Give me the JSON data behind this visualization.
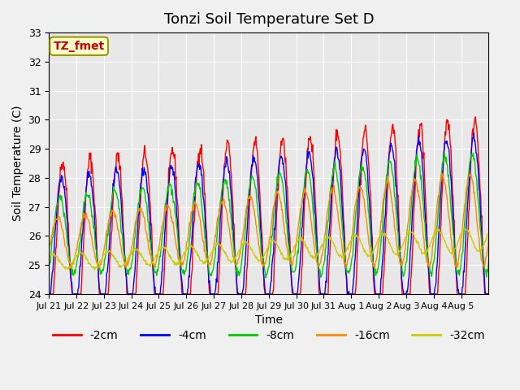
{
  "title": "Tonzi Soil Temperature Set D",
  "xlabel": "Time",
  "ylabel": "Soil Temperature (C)",
  "ylim": [
    24.0,
    33.0
  ],
  "yticks": [
    24.0,
    25.0,
    26.0,
    27.0,
    28.0,
    29.0,
    30.0,
    31.0,
    32.0,
    33.0
  ],
  "xtick_labels": [
    "Jul 21",
    "Jul 22",
    "Jul 23",
    "Jul 24",
    "Jul 25",
    "Jul 26",
    "Jul 27",
    "Jul 28",
    "Jul 29",
    "Jul 30",
    "Jul 31",
    "Aug 1",
    "Aug 2",
    "Aug 3",
    "Aug 4",
    "Aug 5"
  ],
  "annotation_text": "TZ_fmet",
  "annotation_color": "#cc0000",
  "annotation_bg": "#ffffcc",
  "annotation_border": "#999900",
  "series_colors": [
    "#ff0000",
    "#0000ff",
    "#00cc00",
    "#ff8800",
    "#cccc00"
  ],
  "series_labels": [
    "-2cm",
    "-4cm",
    "-8cm",
    "-16cm",
    "-32cm"
  ],
  "fig_bg": "#f0f0f0",
  "plot_bg": "#e8e8e8",
  "title_fontsize": 13,
  "axis_fontsize": 10,
  "tick_fontsize": 8,
  "legend_fontsize": 10,
  "n_days": 16,
  "samples_per_day": 48
}
